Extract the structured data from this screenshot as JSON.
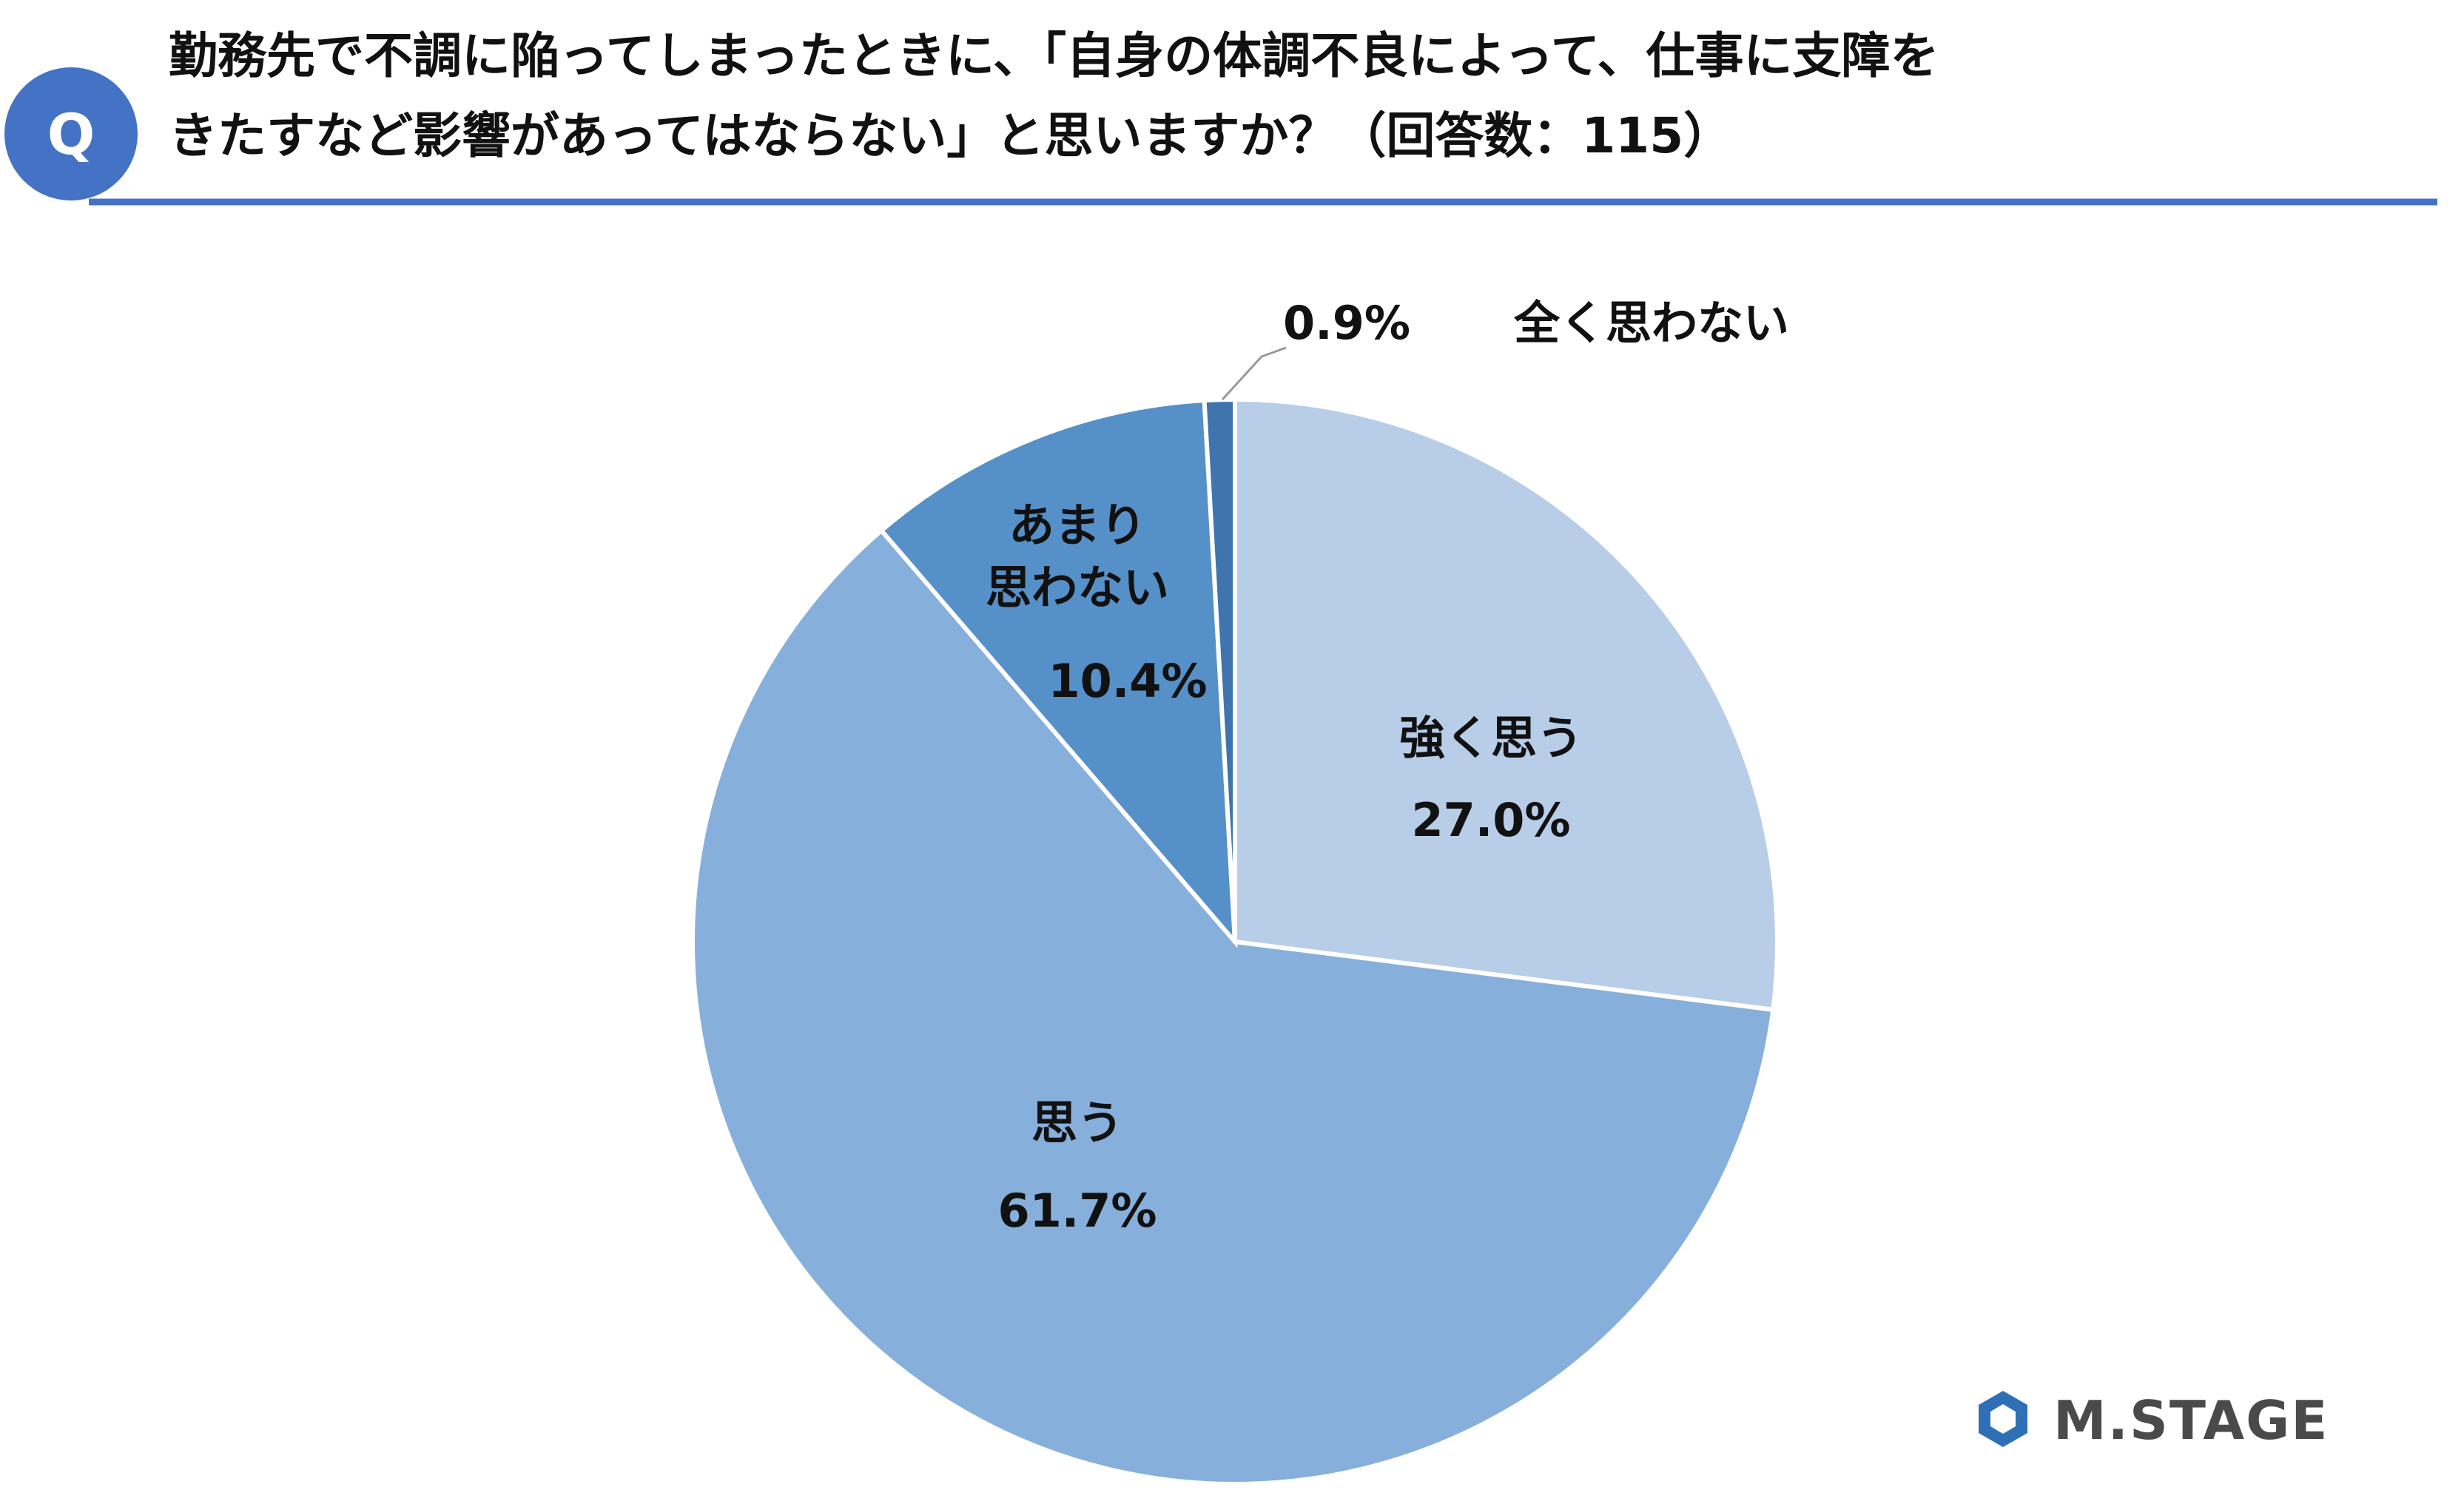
{
  "chart_data": {
    "type": "pie",
    "title": "勤務先で不調に陥ってしまったときに、「自身の体調不良によって、仕事に支障を\nきたすなど影響があってはならない」と思いますか？（回答数：115）",
    "badge": "Q",
    "logo": "M.STAGE",
    "categories": [
      "強く思う",
      "思う",
      "あまり\n思わない",
      "全く思わない"
    ],
    "values": [
      27.0,
      61.7,
      10.4,
      0.9
    ],
    "value_labels": [
      "27.0%",
      "61.7%",
      "10.4%",
      "0.9%"
    ],
    "colors": [
      "#b7cde8",
      "#86afdc",
      "#5690c8",
      "#3f74ae"
    ]
  }
}
